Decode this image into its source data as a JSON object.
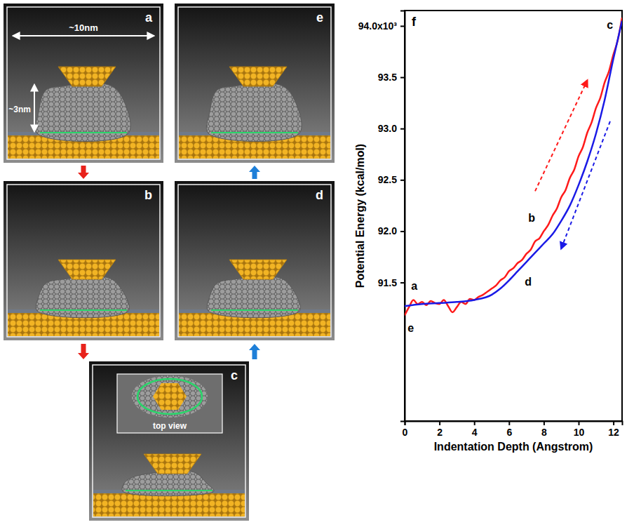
{
  "panels": [
    {
      "label": "a",
      "width_label": "~10nm",
      "height_label": "~3nm"
    },
    {
      "label": "b"
    },
    {
      "label": "c",
      "inset_label": "top view"
    },
    {
      "label": "d"
    },
    {
      "label": "e"
    }
  ],
  "chart_data": {
    "type": "line",
    "title": "f",
    "x_label": "Indentation Depth (Angstrom)",
    "y_label": "Potential Energy (kcal/mol)",
    "xlim": [
      0,
      12.5
    ],
    "ylim": [
      90.15,
      94.15
    ],
    "xticks": [
      0,
      2,
      4,
      6,
      8,
      10,
      12
    ],
    "yticks": [
      91.5,
      {
        "value": 92,
        "label": "92.0"
      },
      92.5,
      {
        "value": 93,
        "label": "93.0"
      },
      93.5,
      {
        "value": 94,
        "label": "94.0x10³"
      }
    ],
    "grid": false,
    "series": [
      {
        "color": "#ff1a1a",
        "line_style": "solid",
        "x": [
          0,
          0.25,
          0.5,
          0.75,
          1,
          1.25,
          1.5,
          1.75,
          2,
          2.25,
          2.5,
          2.75,
          3,
          3.25,
          3.5,
          3.75,
          4,
          4.25,
          4.5,
          4.75,
          5,
          5.25,
          5.5,
          5.75,
          6,
          6.25,
          6.5,
          6.75,
          7,
          7.25,
          7.5,
          7.75,
          8,
          8.25,
          8.5,
          8.75,
          9,
          9.25,
          9.5,
          9.75,
          10,
          10.25,
          10.5,
          10.75,
          11,
          11.25,
          11.5,
          11.75,
          12,
          12.25,
          12.5
        ],
        "values": [
          91.18,
          91.26,
          91.33,
          91.29,
          91.31,
          91.28,
          91.32,
          91.3,
          91.29,
          91.33,
          91.27,
          91.21,
          91.26,
          91.31,
          91.29,
          91.34,
          91.33,
          91.36,
          91.38,
          91.41,
          91.44,
          91.47,
          91.52,
          91.55,
          91.61,
          91.64,
          91.69,
          91.72,
          91.78,
          91.82,
          91.9,
          91.93,
          92.0,
          92.06,
          92.15,
          92.22,
          92.33,
          92.4,
          92.52,
          92.6,
          92.73,
          92.82,
          92.96,
          93.06,
          93.2,
          93.3,
          93.45,
          93.56,
          93.72,
          93.86,
          94.08
        ]
      },
      {
        "color": "#1a1ae6",
        "line_style": "solid",
        "x": [
          0,
          1,
          2,
          3,
          4,
          5,
          5.5,
          6,
          6.5,
          7,
          7.5,
          8,
          8.5,
          9,
          9.5,
          10,
          10.5,
          11,
          11.5,
          12,
          12.5
        ],
        "values": [
          91.27,
          91.29,
          91.3,
          91.31,
          91.33,
          91.38,
          91.44,
          91.52,
          91.61,
          91.7,
          91.79,
          91.88,
          91.97,
          92.1,
          92.25,
          92.45,
          92.68,
          92.95,
          93.28,
          93.68,
          94.05
        ]
      }
    ],
    "annotations": [
      {
        "text": "a",
        "x": 0.55,
        "y": 91.46
      },
      {
        "text": "b",
        "x": 7.3,
        "y": 92.12
      },
      {
        "text": "c",
        "x": 11.8,
        "y": 94.0
      },
      {
        "text": "d",
        "x": 7.1,
        "y": 91.5
      },
      {
        "text": "e",
        "x": 0.35,
        "y": 91.05
      }
    ]
  }
}
